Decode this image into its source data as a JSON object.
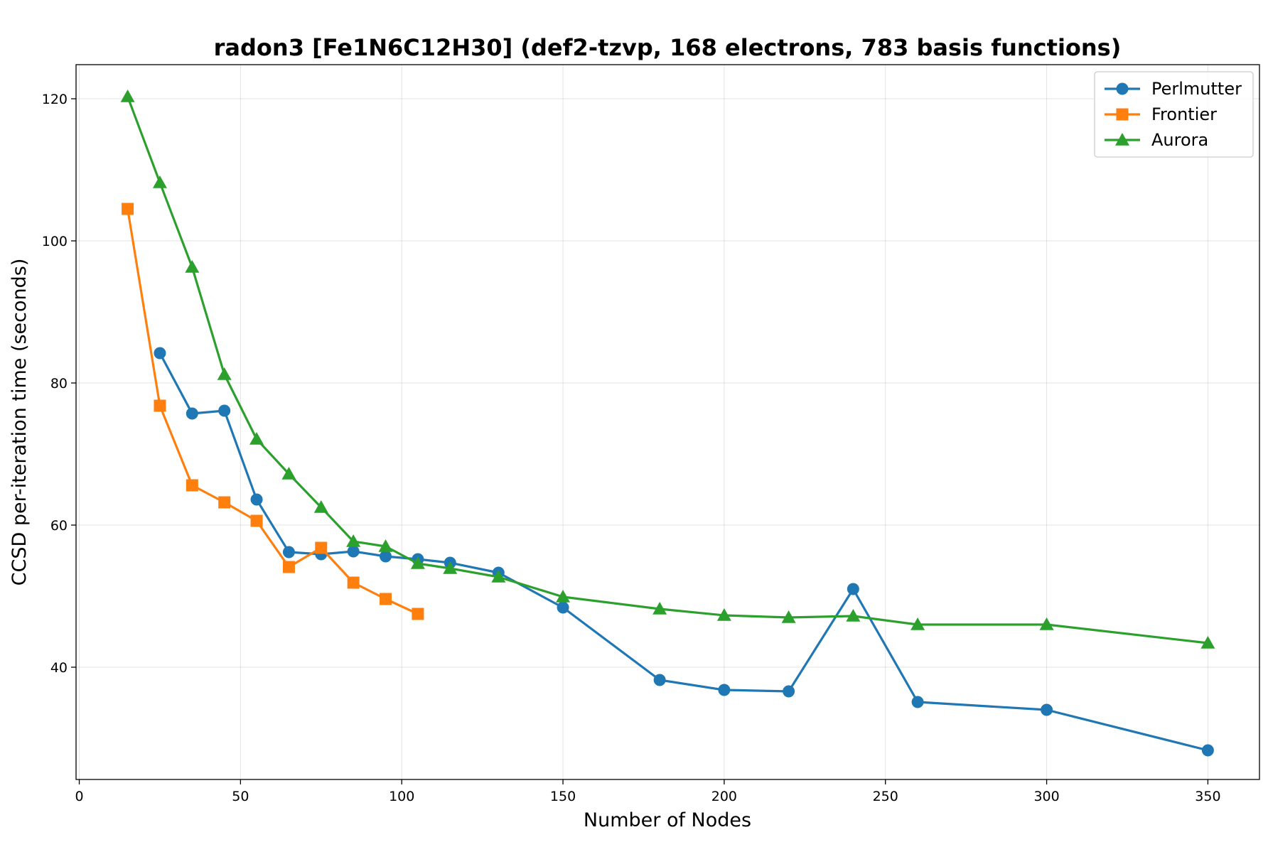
{
  "chart_data": {
    "type": "line",
    "title": "radon3 [Fe1N6C12H30] (def2-tzvp, 168 electrons, 783 basis functions)",
    "xlabel": "Number of Nodes",
    "ylabel": "CCSD per-iteration time (seconds)",
    "xlim": [
      -1,
      366
    ],
    "ylim": [
      24.2,
      124.8
    ],
    "xticks": [
      0,
      50,
      100,
      150,
      200,
      250,
      300,
      350
    ],
    "yticks": [
      40,
      60,
      80,
      100,
      120
    ],
    "grid": true,
    "legend_position": "top-right",
    "series": [
      {
        "name": "Perlmutter",
        "color": "#1f77b4",
        "marker": "circle",
        "x": [
          25,
          35,
          45,
          55,
          65,
          75,
          85,
          95,
          105,
          115,
          130,
          150,
          180,
          200,
          220,
          240,
          260,
          300,
          350
        ],
        "y": [
          84.2,
          75.7,
          76.1,
          63.6,
          56.2,
          55.9,
          56.3,
          55.6,
          55.2,
          54.7,
          53.3,
          48.4,
          38.2,
          36.8,
          36.6,
          51.0,
          35.1,
          34.0,
          28.3
        ]
      },
      {
        "name": "Frontier",
        "color": "#ff7f0e",
        "marker": "square",
        "x": [
          15,
          25,
          35,
          45,
          55,
          65,
          75,
          85,
          95,
          105
        ],
        "y": [
          104.5,
          76.8,
          65.6,
          63.2,
          60.6,
          54.1,
          56.8,
          51.9,
          49.6,
          47.5
        ]
      },
      {
        "name": "Aurora",
        "color": "#2ca02c",
        "marker": "triangle",
        "x": [
          15,
          25,
          35,
          45,
          55,
          65,
          75,
          85,
          95,
          105,
          115,
          130,
          150,
          180,
          200,
          220,
          240,
          260,
          300,
          350
        ],
        "y": [
          120.3,
          108.2,
          96.3,
          81.2,
          72.1,
          67.2,
          62.5,
          57.7,
          57.0,
          54.6,
          53.9,
          52.7,
          49.9,
          48.2,
          47.3,
          47.0,
          47.2,
          46.0,
          46.0,
          43.4
        ]
      }
    ]
  }
}
